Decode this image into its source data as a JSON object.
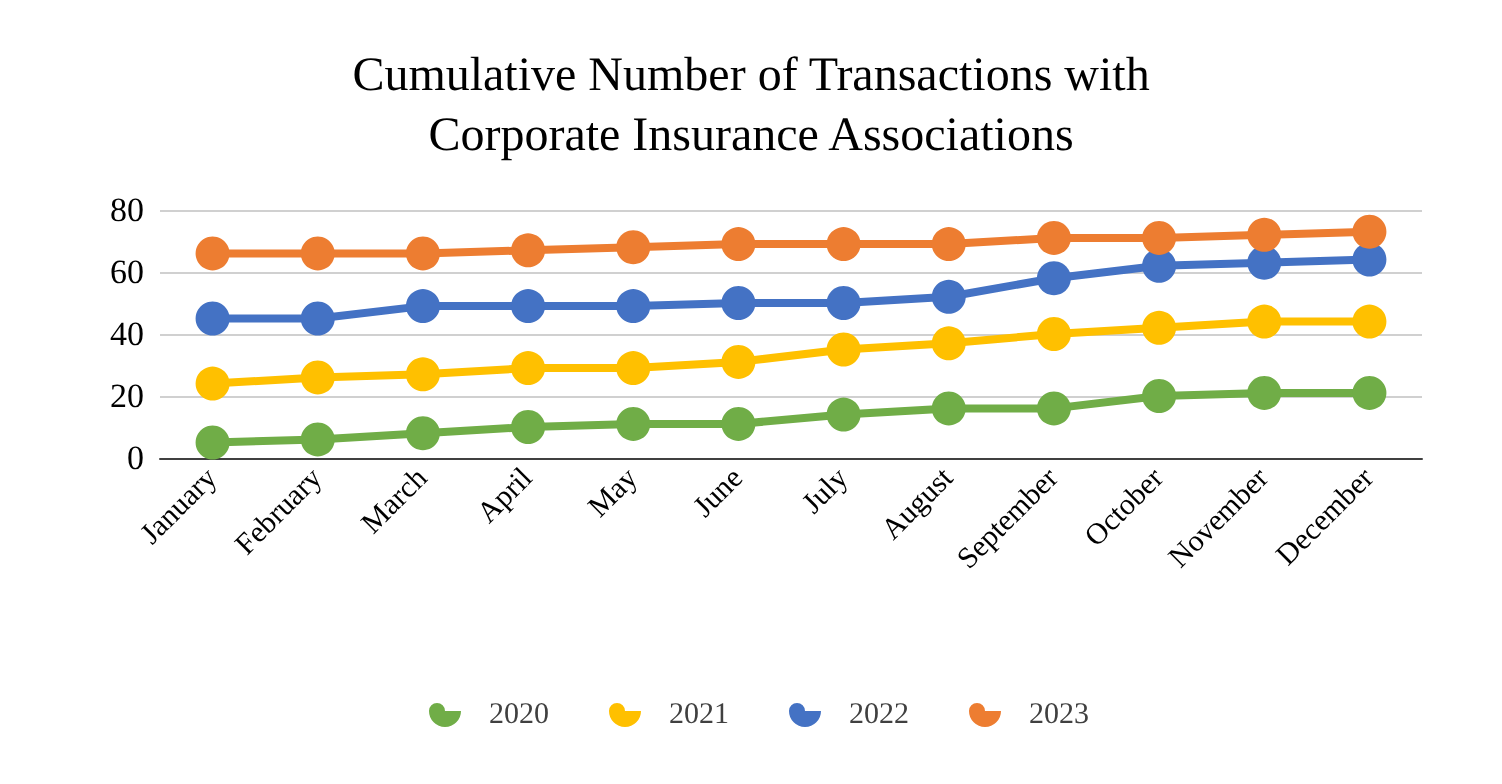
{
  "chart_data": {
    "type": "line",
    "title": "Cumulative Number of Transactions with\nCorporate Insurance Associations",
    "categories": [
      "January",
      "February",
      "March",
      "April",
      "May",
      "June",
      "July",
      "August",
      "September",
      "October",
      "November",
      "December"
    ],
    "series": [
      {
        "name": "2020",
        "color": "#70ad47",
        "values": [
          5,
          6,
          8,
          10,
          11,
          11,
          14,
          16,
          16,
          20,
          21,
          21
        ]
      },
      {
        "name": "2021",
        "color": "#ffc000",
        "values": [
          24,
          26,
          27,
          29,
          29,
          31,
          35,
          37,
          40,
          42,
          44,
          44
        ]
      },
      {
        "name": "2022",
        "color": "#4472c4",
        "values": [
          45,
          45,
          49,
          49,
          49,
          50,
          50,
          52,
          58,
          62,
          63,
          64
        ]
      },
      {
        "name": "2023",
        "color": "#ed7d31",
        "values": [
          66,
          66,
          66,
          67,
          68,
          69,
          69,
          69,
          71,
          71,
          72,
          73
        ]
      }
    ],
    "ylim": [
      0,
      80
    ],
    "yticks": [
      0,
      20,
      40,
      60,
      80
    ],
    "grid": "y",
    "legend": "bottom",
    "marker": "circle",
    "line_style": "solid"
  }
}
